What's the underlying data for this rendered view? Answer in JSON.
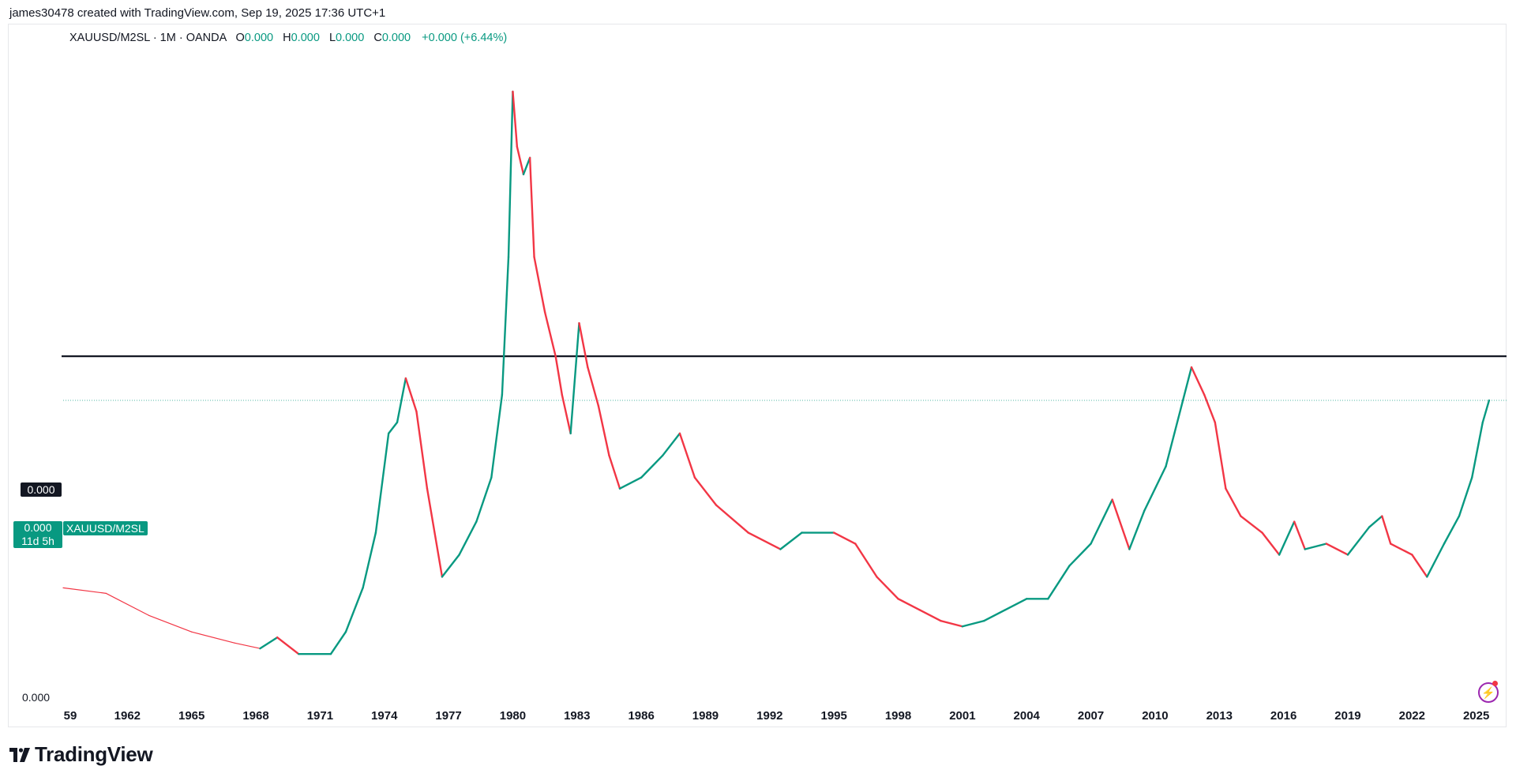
{
  "caption": "james30478 created with TradingView.com, Sep 19, 2025 17:36 UTC+1",
  "legend": {
    "symbol": "XAUUSD/M2SL · 1M · OANDA",
    "o_label": "O",
    "o_value": "0.000",
    "h_label": "H",
    "h_value": "0.000",
    "l_label": "L",
    "l_value": "0.000",
    "c_label": "C",
    "c_value": "0.000",
    "change": "+0.000 (+6.44%)"
  },
  "hline_label": "0.000",
  "price_badge": {
    "value": "0.000",
    "countdown": "11d 5h"
  },
  "symbol_badge": "XAUUSD/M2SL",
  "axis_zero": "0.000",
  "brand": "TradingView",
  "colors": {
    "up": "#089981",
    "down": "#f23645",
    "hline": "#131722",
    "current": "#089981"
  },
  "icons": [
    "tradingview-logo-icon",
    "lightning-icon"
  ],
  "chart_data": {
    "type": "line",
    "note_units": "relative ratio (price axis labels are all 0.000)",
    "x_ticks": [
      "59",
      "1962",
      "1965",
      "1968",
      "1971",
      "1974",
      "1977",
      "1980",
      "1983",
      "1986",
      "1989",
      "1992",
      "1995",
      "1998",
      "2001",
      "2004",
      "2007",
      "2010",
      "2013",
      "2016",
      "2019",
      "2022",
      "2025"
    ],
    "xlim": [
      1959,
      2025.75
    ],
    "horizontal_line": 0.62,
    "current_value": 0.54,
    "series": [
      {
        "points": [
          [
            1959.0,
            0.2
          ],
          [
            1961.0,
            0.19
          ],
          [
            1963.0,
            0.15
          ],
          [
            1965.0,
            0.12
          ],
          [
            1967.0,
            0.1
          ],
          [
            1968.2,
            0.09
          ],
          [
            1969.0,
            0.11
          ],
          [
            1970.0,
            0.08
          ],
          [
            1971.5,
            0.08
          ],
          [
            1972.2,
            0.12
          ],
          [
            1973.0,
            0.2
          ],
          [
            1973.6,
            0.3
          ],
          [
            1974.2,
            0.48
          ],
          [
            1974.6,
            0.5
          ],
          [
            1975.0,
            0.58
          ],
          [
            1975.5,
            0.52
          ],
          [
            1976.0,
            0.38
          ],
          [
            1976.7,
            0.22
          ],
          [
            1977.5,
            0.26
          ],
          [
            1978.3,
            0.32
          ],
          [
            1979.0,
            0.4
          ],
          [
            1979.5,
            0.55
          ],
          [
            1979.8,
            0.8
          ],
          [
            1980.0,
            1.1
          ],
          [
            1980.2,
            1.0
          ],
          [
            1980.5,
            0.95
          ],
          [
            1980.8,
            0.98
          ],
          [
            1981.0,
            0.8
          ],
          [
            1981.5,
            0.7
          ],
          [
            1982.0,
            0.62
          ],
          [
            1982.3,
            0.55
          ],
          [
            1982.7,
            0.48
          ],
          [
            1983.1,
            0.68
          ],
          [
            1983.5,
            0.6
          ],
          [
            1984.0,
            0.53
          ],
          [
            1984.5,
            0.44
          ],
          [
            1985.0,
            0.38
          ],
          [
            1986.0,
            0.4
          ],
          [
            1987.0,
            0.44
          ],
          [
            1987.8,
            0.48
          ],
          [
            1988.5,
            0.4
          ],
          [
            1989.5,
            0.35
          ],
          [
            1991.0,
            0.3
          ],
          [
            1992.5,
            0.27
          ],
          [
            1993.5,
            0.3
          ],
          [
            1995.0,
            0.3
          ],
          [
            1996.0,
            0.28
          ],
          [
            1997.0,
            0.22
          ],
          [
            1998.0,
            0.18
          ],
          [
            1999.0,
            0.16
          ],
          [
            2000.0,
            0.14
          ],
          [
            2001.0,
            0.13
          ],
          [
            2002.0,
            0.14
          ],
          [
            2003.0,
            0.16
          ],
          [
            2004.0,
            0.18
          ],
          [
            2005.0,
            0.18
          ],
          [
            2006.0,
            0.24
          ],
          [
            2007.0,
            0.28
          ],
          [
            2008.0,
            0.36
          ],
          [
            2008.8,
            0.27
          ],
          [
            2009.5,
            0.34
          ],
          [
            2010.5,
            0.42
          ],
          [
            2011.7,
            0.6
          ],
          [
            2012.3,
            0.55
          ],
          [
            2012.8,
            0.5
          ],
          [
            2013.3,
            0.38
          ],
          [
            2014.0,
            0.33
          ],
          [
            2015.0,
            0.3
          ],
          [
            2015.8,
            0.26
          ],
          [
            2016.5,
            0.32
          ],
          [
            2017.0,
            0.27
          ],
          [
            2018.0,
            0.28
          ],
          [
            2019.0,
            0.26
          ],
          [
            2020.0,
            0.31
          ],
          [
            2020.6,
            0.33
          ],
          [
            2021.0,
            0.28
          ],
          [
            2022.0,
            0.26
          ],
          [
            2022.7,
            0.22
          ],
          [
            2023.5,
            0.28
          ],
          [
            2024.2,
            0.33
          ],
          [
            2024.8,
            0.4
          ],
          [
            2025.3,
            0.5
          ],
          [
            2025.6,
            0.54
          ]
        ]
      }
    ]
  }
}
